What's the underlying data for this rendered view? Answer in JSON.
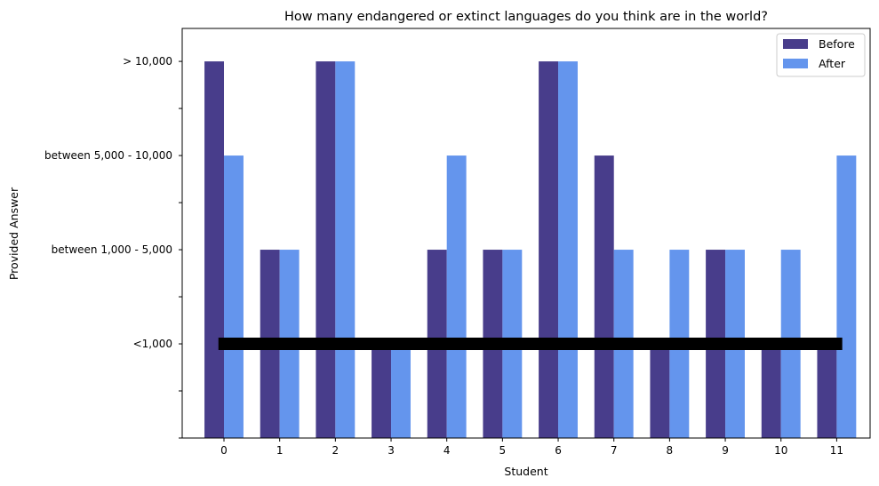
{
  "chart_data": {
    "type": "bar",
    "title": "How many endangered or extinct languages do you think are in the world?",
    "xlabel": "Student",
    "ylabel": "Provided Answer",
    "categories": [
      "0",
      "1",
      "2",
      "3",
      "4",
      "5",
      "6",
      "7",
      "8",
      "9",
      "10",
      "11"
    ],
    "y_tick_labels": [
      {
        "value": 4,
        "label": "> 10,000"
      },
      {
        "value": 3,
        "label": "between 5,000 - 10,000"
      },
      {
        "value": 2,
        "label": "between 1,000 - 5,000"
      },
      {
        "value": 1,
        "label": "<1,000"
      }
    ],
    "y_minor_ticks": [
      0,
      0.5,
      1.5,
      2.5,
      3.5
    ],
    "ylim": [
      0,
      4.35
    ],
    "series": [
      {
        "name": "Before",
        "color": "#483D8B",
        "values": [
          4,
          2,
          4,
          1,
          2,
          2,
          4,
          3,
          1,
          2,
          1,
          1
        ]
      },
      {
        "name": "After",
        "color": "#6495ED",
        "values": [
          3,
          2,
          4,
          1,
          3,
          2,
          4,
          2,
          2,
          2,
          2,
          3
        ]
      }
    ],
    "reference_line": {
      "y": 1,
      "x_start": -0.1,
      "x_end": 11.1,
      "color": "#000000"
    },
    "legend": {
      "position": "top-right"
    },
    "grid": false
  }
}
